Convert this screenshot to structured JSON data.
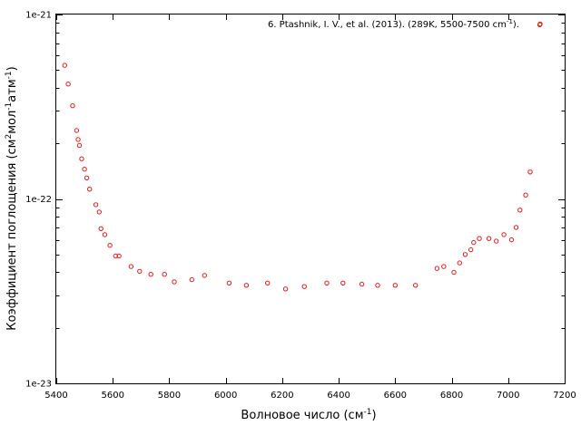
{
  "chart_data": {
    "type": "scatter",
    "xlabel": "Волновое число (см",
    "xlabel_sup": "-1",
    "xlabel_end": ")",
    "ylabel_parts": [
      "Коэффициент поглощения (см",
      "2",
      "мол",
      "-1",
      "атм",
      "-1",
      ")"
    ],
    "xlim": [
      5400,
      7200
    ],
    "ylim": [
      1e-23,
      1e-21
    ],
    "yscale": "log",
    "x_ticks": [
      5400,
      5600,
      5800,
      6000,
      6200,
      6400,
      6600,
      6800,
      7000,
      7200
    ],
    "x_tick_labels": [
      "5400",
      "5600",
      "5800",
      "6000",
      "6200",
      "6400",
      "6600",
      "6800",
      "7000",
      "7200"
    ],
    "y_ticks": [
      1e-23,
      1e-22,
      1e-21
    ],
    "y_tick_labels": [
      "1e-23",
      "1e-22",
      "1e-21"
    ],
    "grid": false,
    "legend_position": "top-right",
    "series": [
      {
        "name": "6. Ptashnik, I. V., et al. (2013). (289K, 5500-7500 cm",
        "name_sup": "-1",
        "name_end": ").",
        "color": "#e31a1c",
        "marker": "open-circle",
        "x": [
          5430,
          5442,
          5458,
          5472,
          5477,
          5482,
          5490,
          5500,
          5508,
          5518,
          5540,
          5552,
          5558,
          5572,
          5590,
          5610,
          5622,
          5665,
          5695,
          5735,
          5783,
          5818,
          5880,
          5925,
          6012,
          6073,
          6148,
          6212,
          6278,
          6358,
          6415,
          6482,
          6538,
          6600,
          6672,
          6748,
          6772,
          6808,
          6828,
          6848,
          6868,
          6878,
          6898,
          6932,
          6958,
          6985,
          7012,
          7028,
          7042,
          7062,
          7078,
          7112
        ],
        "y": [
          5.3e-22,
          4.2e-22,
          3.2e-22,
          2.35e-22,
          2.1e-22,
          1.95e-22,
          1.65e-22,
          1.45e-22,
          1.3e-22,
          1.13e-22,
          9.3e-23,
          8.5e-23,
          6.9e-23,
          6.4e-23,
          5.6e-23,
          4.9e-23,
          4.9e-23,
          4.3e-23,
          4.05e-23,
          3.9e-23,
          3.9e-23,
          3.55e-23,
          3.65e-23,
          3.85e-23,
          3.5e-23,
          3.4e-23,
          3.5e-23,
          3.25e-23,
          3.35e-23,
          3.5e-23,
          3.5e-23,
          3.45e-23,
          3.4e-23,
          3.4e-23,
          3.4e-23,
          4.2e-23,
          4.3e-23,
          4e-23,
          4.5e-23,
          5e-23,
          5.3e-23,
          5.8e-23,
          6.1e-23,
          6.1e-23,
          5.9e-23,
          6.4e-23,
          6e-23,
          7e-23,
          8.7e-23,
          1.05e-22,
          1.4e-22,
          8.8e-22
        ]
      }
    ]
  }
}
